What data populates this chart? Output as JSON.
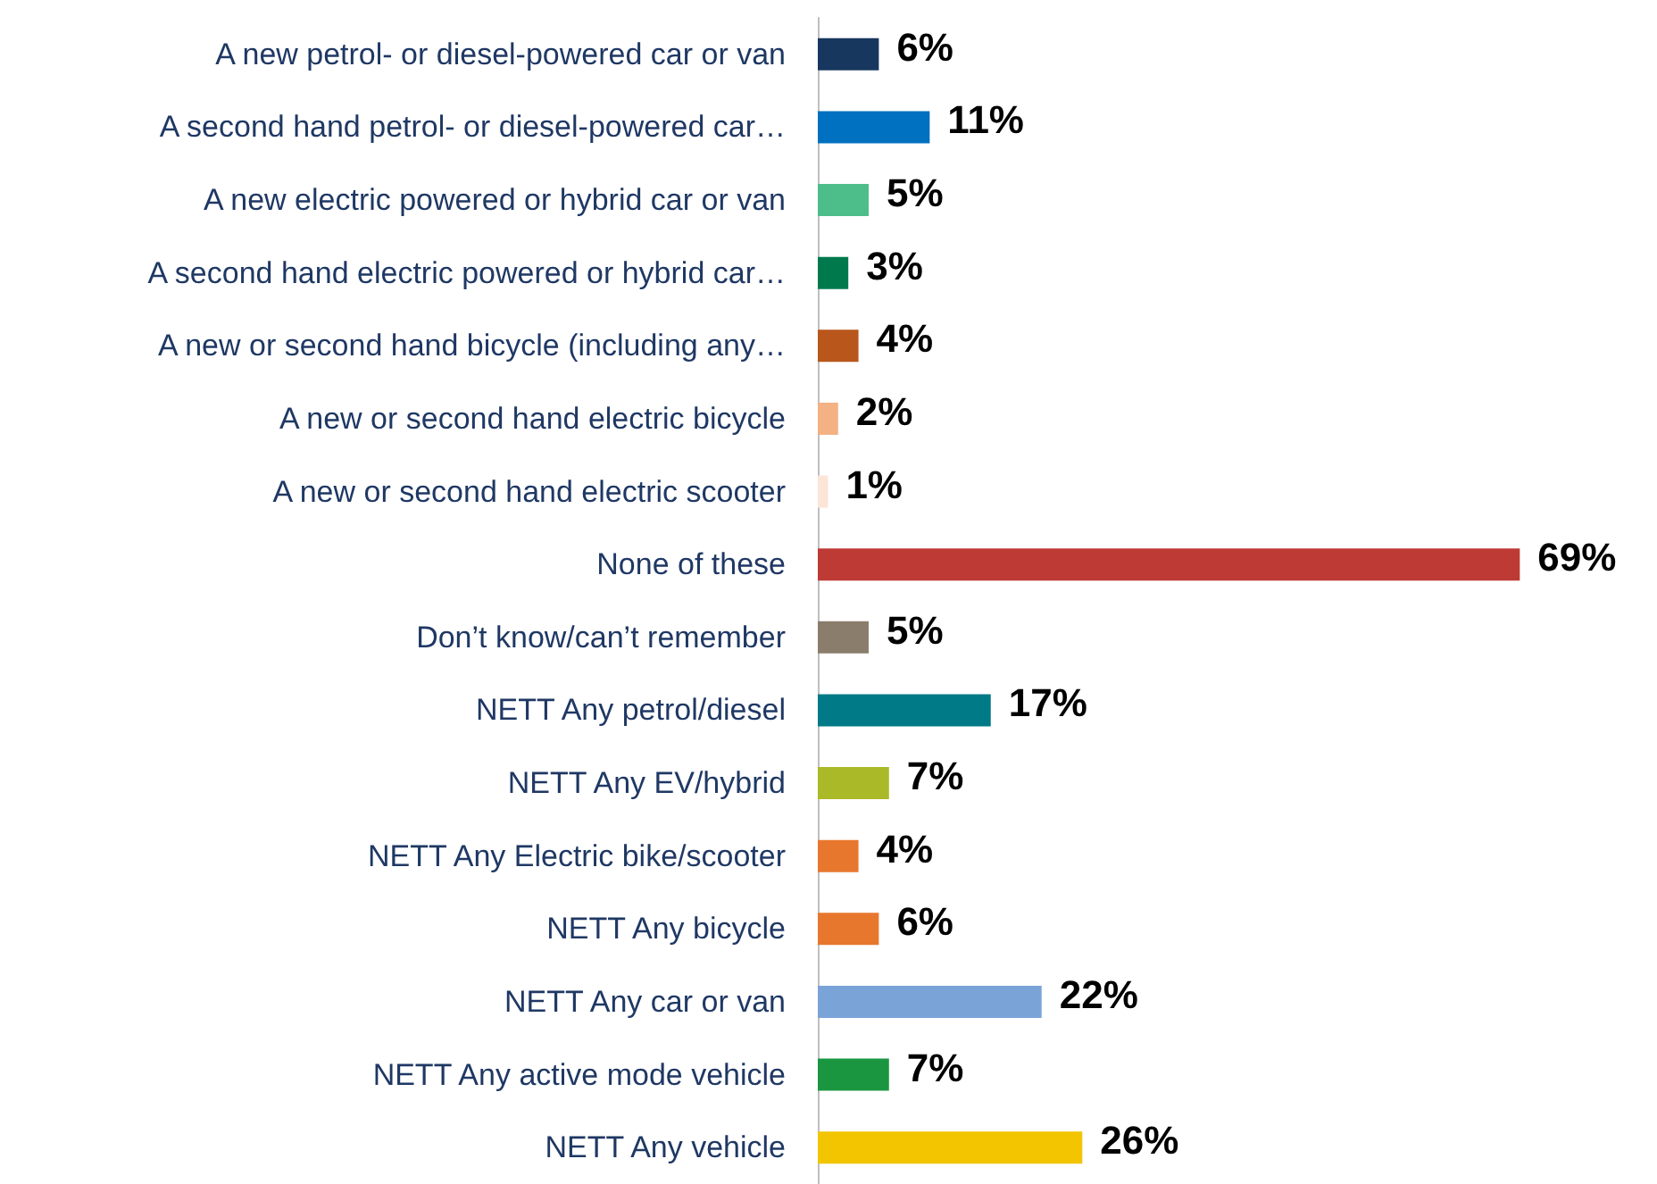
{
  "chart_data": {
    "type": "bar",
    "orientation": "horizontal",
    "categories": [
      "A new petrol- or diesel-powered car or van",
      "A second hand petrol- or diesel-powered car…",
      "A new electric powered or hybrid car or van",
      "A second hand electric powered or hybrid car…",
      "A new or second hand bicycle (including any…",
      "A new or second hand electric bicycle",
      "A new or second hand electric scooter",
      "None of these",
      "Don’t know/can’t remember",
      "NETT Any petrol/diesel",
      "NETT Any EV/hybrid",
      "NETT Any Electric bike/scooter",
      "NETT Any bicycle",
      "NETT Any car or van",
      "NETT Any active mode vehicle",
      "NETT Any vehicle"
    ],
    "values": [
      6,
      11,
      5,
      3,
      4,
      2,
      1,
      69,
      5,
      17,
      7,
      4,
      6,
      22,
      7,
      26
    ],
    "value_labels": [
      "6%",
      "11%",
      "5%",
      "3%",
      "4%",
      "2%",
      "1%",
      "69%",
      "5%",
      "17%",
      "7%",
      "4%",
      "6%",
      "22%",
      "7%",
      "26%"
    ],
    "colors": [
      "#17375e",
      "#0070c0",
      "#4dbd8a",
      "#007a4d",
      "#b8561b",
      "#f4b183",
      "#fbe5d6",
      "#be3a34",
      "#8b7d6b",
      "#007a87",
      "#aab927",
      "#e8772e",
      "#e8772e",
      "#7aa3d8",
      "#1a9641",
      "#f2c500"
    ]
  }
}
